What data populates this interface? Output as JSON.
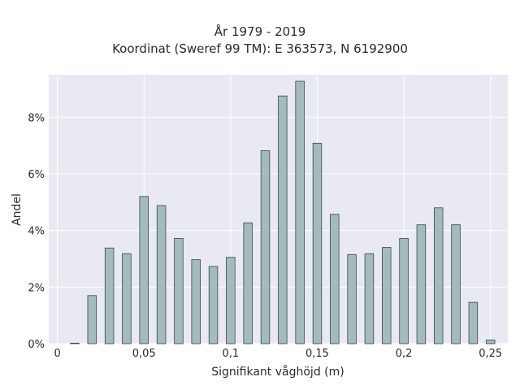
{
  "chart_data": {
    "type": "bar",
    "title_line1": "År 1979 - 2019",
    "title_line2": "Koordinat (Sweref 99 TM): E 363573, N 6192900",
    "xlabel": "Signifikant våghöjd (m)",
    "ylabel": "Andel",
    "xlim": [
      -0.005,
      0.26
    ],
    "ylim": [
      0,
      9.5
    ],
    "x_ticks": [
      {
        "value": 0,
        "label": "0"
      },
      {
        "value": 0.05,
        "label": "0,05"
      },
      {
        "value": 0.1,
        "label": "0,1"
      },
      {
        "value": 0.15,
        "label": "0,15"
      },
      {
        "value": 0.2,
        "label": "0,2"
      },
      {
        "value": 0.25,
        "label": "0,25"
      }
    ],
    "y_ticks": [
      {
        "value": 0,
        "label": "0%"
      },
      {
        "value": 2,
        "label": "2%"
      },
      {
        "value": 4,
        "label": "4%"
      },
      {
        "value": 6,
        "label": "6%"
      },
      {
        "value": 8,
        "label": "8%"
      }
    ],
    "x": [
      0.01,
      0.02,
      0.03,
      0.04,
      0.05,
      0.06,
      0.07,
      0.08,
      0.09,
      0.1,
      0.11,
      0.12,
      0.13,
      0.14,
      0.15,
      0.16,
      0.17,
      0.18,
      0.19,
      0.2,
      0.21,
      0.22,
      0.23,
      0.24,
      0.25
    ],
    "values": [
      0.02,
      1.7,
      3.38,
      3.18,
      5.2,
      4.88,
      3.72,
      2.97,
      2.73,
      3.05,
      4.27,
      6.82,
      8.75,
      9.27,
      7.08,
      4.57,
      3.15,
      3.18,
      3.4,
      3.72,
      4.2,
      4.8,
      4.2,
      1.46,
      0.13
    ],
    "bar_color": "#a3bbbb",
    "bar_edge_color": "#3a4848",
    "plot_bg": "#e9e9f1",
    "grid": true
  }
}
